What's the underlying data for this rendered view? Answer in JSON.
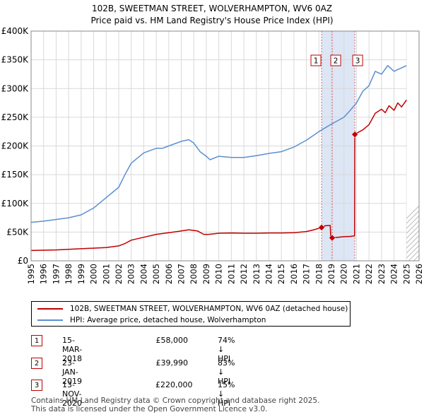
{
  "header": {
    "title_line1": "102B, SWEETMAN STREET, WOLVERHAMPTON, WV6 0AZ",
    "title_line2": "Price paid vs. HM Land Registry's House Price Index (HPI)"
  },
  "chart_data": {
    "type": "line",
    "xlim": [
      1995,
      2026
    ],
    "ylim": [
      0,
      400000
    ],
    "y_ticks": [
      0,
      50000,
      100000,
      150000,
      200000,
      250000,
      300000,
      350000,
      400000
    ],
    "y_tick_labels": [
      "£0",
      "£50K",
      "£100K",
      "£150K",
      "£200K",
      "£250K",
      "£300K",
      "£350K",
      "£400K"
    ],
    "x_ticks": [
      1995,
      1996,
      1997,
      1998,
      1999,
      2000,
      2001,
      2002,
      2003,
      2004,
      2005,
      2006,
      2007,
      2008,
      2009,
      2010,
      2011,
      2012,
      2013,
      2014,
      2015,
      2016,
      2017,
      2018,
      2019,
      2020,
      2021,
      2022,
      2023,
      2024,
      2025,
      2026
    ],
    "x_tick_labels": [
      "1995",
      "1996",
      "1997",
      "1998",
      "1999",
      "2000",
      "2001",
      "2002",
      "2003",
      "2004",
      "2005",
      "2006",
      "2007",
      "2008",
      "2009",
      "2010",
      "2011",
      "2012",
      "2013",
      "2014",
      "2015",
      "2016",
      "2017",
      "2018",
      "2019",
      "2020",
      "2021",
      "2022",
      "2023",
      "2024",
      "2025",
      "2026"
    ],
    "grid": true,
    "future_hatch_from": 2025.0,
    "colors": {
      "property": "#c00000",
      "hpi": "#5b8fd0",
      "shade": "#dce6f5",
      "marker_border": "#c00000"
    },
    "series": [
      {
        "name": "102B, SWEETMAN STREET, WOLVERHAMPTON, WV6 0AZ (detached house)",
        "x": [
          1995.0,
          1996.0,
          1997.0,
          1998.0,
          1999.0,
          2000.0,
          2001.0,
          2002.0,
          2002.5,
          2003.0,
          2004.0,
          2005.0,
          2006.0,
          2007.0,
          2007.6,
          2008.3,
          2008.8,
          2009.2,
          2010.0,
          2011.0,
          2012.0,
          2013.0,
          2014.0,
          2015.0,
          2016.0,
          2017.0,
          2017.6,
          2018.21,
          2018.5,
          2018.9,
          2018.95,
          2019.06,
          2019.5,
          2020.0,
          2020.5,
          2020.85,
          2020.87,
          2021.0,
          2021.5,
          2022.0,
          2022.5,
          2023.0,
          2023.3,
          2023.6,
          2024.0,
          2024.3,
          2024.6,
          2025.0
        ],
        "y": [
          18000,
          18500,
          19000,
          20000,
          21000,
          22000,
          23000,
          26000,
          30000,
          36000,
          41000,
          46000,
          49000,
          52000,
          54000,
          52000,
          46000,
          46000,
          48000,
          48500,
          48000,
          48000,
          48500,
          48500,
          49000,
          51000,
          54000,
          58000,
          61000,
          61500,
          40500,
          39990,
          41000,
          42000,
          42500,
          43500,
          220000,
          222000,
          228000,
          237000,
          257000,
          264000,
          258000,
          270000,
          262000,
          275000,
          268000,
          280000
        ]
      },
      {
        "name": "HPI: Average price, detached house, Wolverhampton",
        "x": [
          1995.0,
          1996.0,
          1997.0,
          1998.0,
          1999.0,
          2000.0,
          2001.0,
          2002.0,
          2002.5,
          2003.0,
          2004.0,
          2005.0,
          2005.5,
          2006.0,
          2007.0,
          2007.6,
          2008.0,
          2008.5,
          2009.0,
          2009.3,
          2010.0,
          2011.0,
          2012.0,
          2013.0,
          2014.0,
          2015.0,
          2016.0,
          2017.0,
          2018.0,
          2019.0,
          2020.0,
          2020.5,
          2021.0,
          2021.5,
          2022.0,
          2022.5,
          2023.0,
          2023.5,
          2024.0,
          2024.5,
          2025.0
        ],
        "y": [
          67000,
          69000,
          72000,
          75000,
          80000,
          92000,
          110000,
          128000,
          150000,
          170000,
          188000,
          196000,
          196000,
          200000,
          208000,
          211000,
          205000,
          190000,
          182000,
          176000,
          182000,
          180000,
          180000,
          183000,
          187000,
          190000,
          198000,
          210000,
          225000,
          238000,
          250000,
          262000,
          275000,
          295000,
          305000,
          330000,
          325000,
          340000,
          330000,
          335000,
          340000
        ]
      }
    ],
    "transactions": [
      {
        "label": "1",
        "x": 2018.21,
        "y": 58000
      },
      {
        "label": "2",
        "x": 2019.06,
        "y": 39990
      },
      {
        "label": "3",
        "x": 2020.87,
        "y": 220000
      }
    ]
  },
  "legend": {
    "property_label": "102B, SWEETMAN STREET, WOLVERHAMPTON, WV6 0AZ (detached house)",
    "hpi_label": "HPI: Average price, detached house, Wolverhampton"
  },
  "transactions_table": [
    {
      "num": "1",
      "date": "15-MAR-2018",
      "price": "£58,000",
      "hpi": "74% ↓ HPI"
    },
    {
      "num": "2",
      "date": "23-JAN-2019",
      "price": "£39,990",
      "hpi": "83% ↓ HPI"
    },
    {
      "num": "3",
      "date": "13-NOV-2020",
      "price": "£220,000",
      "hpi": "15% ↓ HPI"
    }
  ],
  "footer": {
    "line1": "Contains HM Land Registry data © Crown copyright and database right 2025.",
    "line2": "This data is licensed under the Open Government Licence v3.0."
  }
}
